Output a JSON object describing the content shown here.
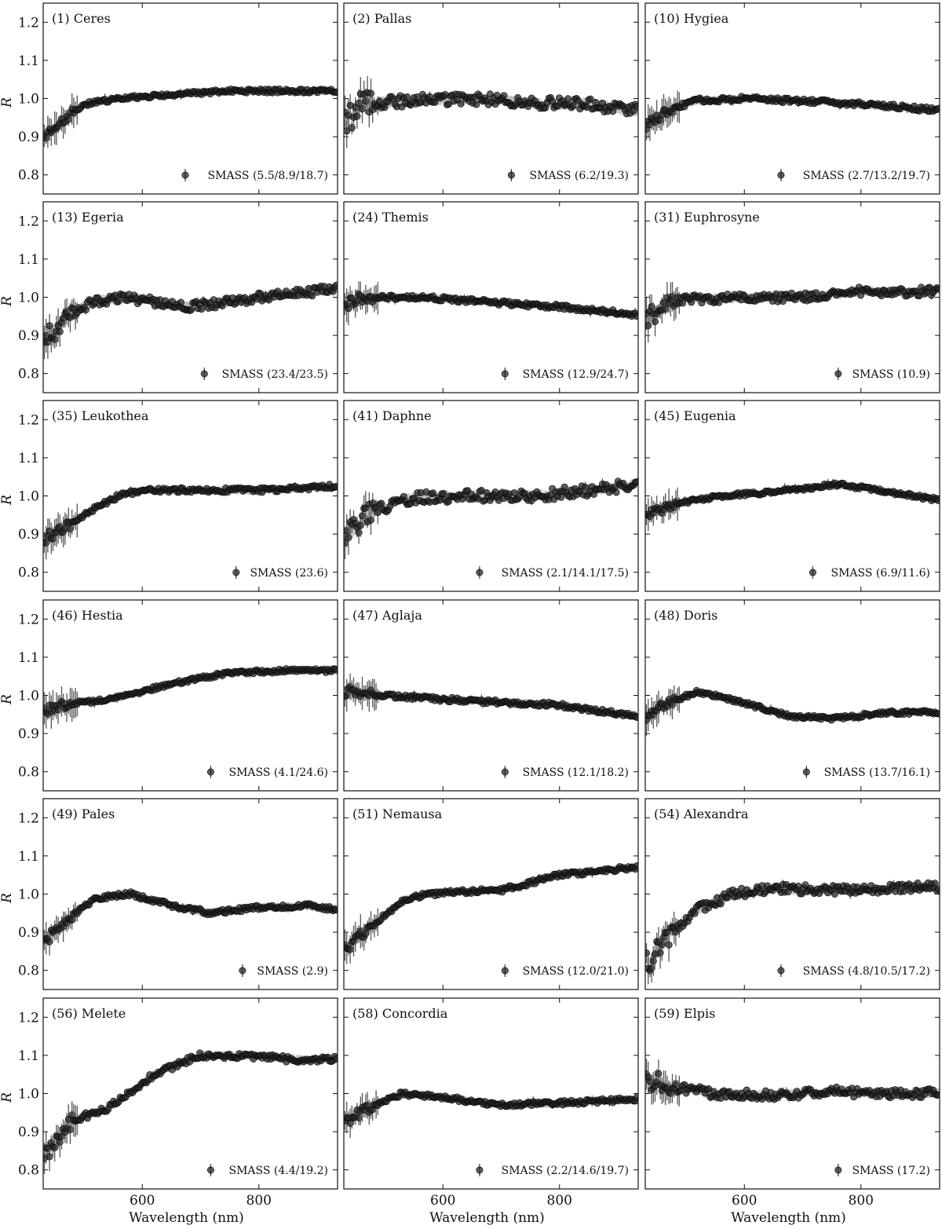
{
  "figure": {
    "xlabel": "Wavelength (nm)",
    "ylabel": "R"
  },
  "chart_data": {
    "type": "scatter",
    "xlim": [
      430,
      935
    ],
    "ylim": [
      0.75,
      1.25
    ],
    "xticks": [
      600,
      800
    ],
    "xtick_labels": [
      "600",
      "800"
    ],
    "yticks": [
      0.8,
      0.9,
      1.0,
      1.1,
      1.2
    ],
    "ytick_labels": [
      "0.8",
      "0.9",
      "1.0",
      "1.1",
      "1.2"
    ],
    "colors": {
      "point": "#222222",
      "band": "#b8b8b8",
      "axis": "#111111"
    },
    "panels": [
      {
        "title": "(1) Ceres",
        "legend": "SMASS (5.5/8.9/18.7)",
        "profile": [
          [
            435,
            0.9
          ],
          [
            460,
            0.94
          ],
          [
            500,
            0.985
          ],
          [
            560,
            1.0
          ],
          [
            650,
            1.01
          ],
          [
            750,
            1.02
          ],
          [
            850,
            1.02
          ],
          [
            930,
            1.02
          ]
        ],
        "noise": 0.005
      },
      {
        "title": "(2) Pallas",
        "legend": "SMASS (6.2/19.3)",
        "profile": [
          [
            435,
            0.94
          ],
          [
            460,
            0.985
          ],
          [
            550,
            0.995
          ],
          [
            650,
            1.0
          ],
          [
            750,
            0.99
          ],
          [
            850,
            0.985
          ],
          [
            930,
            0.97
          ]
        ],
        "noise": 0.015
      },
      {
        "title": "(10) Hygiea",
        "legend": "SMASS (2.7/13.2/19.7)",
        "profile": [
          [
            435,
            0.93
          ],
          [
            470,
            0.97
          ],
          [
            520,
            0.995
          ],
          [
            600,
            1.0
          ],
          [
            750,
            0.99
          ],
          [
            850,
            0.98
          ],
          [
            930,
            0.97
          ]
        ],
        "noise": 0.006
      },
      {
        "title": "(13) Egeria",
        "legend": "SMASS (23.4/23.5)",
        "profile": [
          [
            435,
            0.89
          ],
          [
            470,
            0.95
          ],
          [
            520,
            0.99
          ],
          [
            570,
            1.0
          ],
          [
            680,
            0.975
          ],
          [
            760,
            0.99
          ],
          [
            850,
            1.01
          ],
          [
            930,
            1.02
          ]
        ],
        "noise": 0.012
      },
      {
        "title": "(24) Themis",
        "legend": "SMASS (12.9/24.7)",
        "profile": [
          [
            435,
            0.98
          ],
          [
            460,
            1.0
          ],
          [
            560,
            1.0
          ],
          [
            700,
            0.985
          ],
          [
            800,
            0.975
          ],
          [
            930,
            0.955
          ]
        ],
        "noise": 0.006
      },
      {
        "title": "(31) Euphrosyne",
        "legend": "SMASS (10.9)",
        "profile": [
          [
            435,
            0.94
          ],
          [
            460,
            0.98
          ],
          [
            500,
            0.995
          ],
          [
            600,
            1.0
          ],
          [
            700,
            1.0
          ],
          [
            800,
            1.015
          ],
          [
            930,
            1.015
          ]
        ],
        "noise": 0.012
      },
      {
        "title": "(35) Leukothea",
        "legend": "SMASS (23.6)",
        "profile": [
          [
            435,
            0.89
          ],
          [
            470,
            0.92
          ],
          [
            520,
            0.97
          ],
          [
            560,
            1.0
          ],
          [
            600,
            1.015
          ],
          [
            700,
            1.015
          ],
          [
            800,
            1.015
          ],
          [
            930,
            1.025
          ]
        ],
        "noise": 0.006
      },
      {
        "title": "(41) Daphne",
        "legend": "SMASS (2.1/14.1/17.5)",
        "profile": [
          [
            435,
            0.89
          ],
          [
            480,
            0.96
          ],
          [
            550,
            0.995
          ],
          [
            650,
            1.0
          ],
          [
            750,
            1.0
          ],
          [
            850,
            1.015
          ],
          [
            930,
            1.03
          ]
        ],
        "noise": 0.015
      },
      {
        "title": "(45) Eugenia",
        "legend": "SMASS (6.9/11.6)",
        "profile": [
          [
            435,
            0.95
          ],
          [
            480,
            0.98
          ],
          [
            560,
            1.0
          ],
          [
            650,
            1.01
          ],
          [
            760,
            1.03
          ],
          [
            850,
            1.01
          ],
          [
            930,
            0.99
          ]
        ],
        "noise": 0.005
      },
      {
        "title": "(46) Hestia",
        "legend": "SMASS (4.1/24.6)",
        "profile": [
          [
            435,
            0.96
          ],
          [
            460,
            0.975
          ],
          [
            550,
            0.99
          ],
          [
            650,
            1.03
          ],
          [
            750,
            1.06
          ],
          [
            850,
            1.065
          ],
          [
            930,
            1.065
          ]
        ],
        "noise": 0.005
      },
      {
        "title": "(47) Aglaja",
        "legend": "SMASS (12.1/18.2)",
        "profile": [
          [
            435,
            1.01
          ],
          [
            500,
            1.0
          ],
          [
            650,
            0.985
          ],
          [
            800,
            0.975
          ],
          [
            930,
            0.945
          ]
        ],
        "noise": 0.006
      },
      {
        "title": "(48) Doris",
        "legend": "SMASS (13.7/16.1)",
        "profile": [
          [
            435,
            0.94
          ],
          [
            460,
            0.975
          ],
          [
            520,
            1.01
          ],
          [
            600,
            0.98
          ],
          [
            680,
            0.945
          ],
          [
            750,
            0.94
          ],
          [
            850,
            0.955
          ],
          [
            930,
            0.955
          ]
        ],
        "noise": 0.005
      },
      {
        "title": "(49) Pales",
        "legend": "SMASS (2.9)",
        "profile": [
          [
            435,
            0.88
          ],
          [
            470,
            0.93
          ],
          [
            520,
            0.99
          ],
          [
            580,
            1.0
          ],
          [
            650,
            0.97
          ],
          [
            720,
            0.95
          ],
          [
            800,
            0.965
          ],
          [
            880,
            0.97
          ],
          [
            930,
            0.96
          ]
        ],
        "noise": 0.006
      },
      {
        "title": "(51) Nemausa",
        "legend": "SMASS (12.0/21.0)",
        "profile": [
          [
            435,
            0.86
          ],
          [
            480,
            0.92
          ],
          [
            540,
            0.99
          ],
          [
            600,
            1.005
          ],
          [
            700,
            1.01
          ],
          [
            800,
            1.05
          ],
          [
            930,
            1.07
          ]
        ],
        "noise": 0.006
      },
      {
        "title": "(54) Alexandra",
        "legend": "SMASS (4.8/10.5/17.2)",
        "profile": [
          [
            435,
            0.82
          ],
          [
            470,
            0.89
          ],
          [
            520,
            0.96
          ],
          [
            580,
            1.0
          ],
          [
            650,
            1.015
          ],
          [
            750,
            1.01
          ],
          [
            850,
            1.015
          ],
          [
            930,
            1.02
          ]
        ],
        "noise": 0.012
      },
      {
        "title": "(56) Melete",
        "legend": "SMASS (4.4/19.2)",
        "profile": [
          [
            435,
            0.84
          ],
          [
            480,
            0.93
          ],
          [
            540,
            0.96
          ],
          [
            620,
            1.05
          ],
          [
            700,
            1.1
          ],
          [
            780,
            1.1
          ],
          [
            850,
            1.09
          ],
          [
            930,
            1.09
          ]
        ],
        "noise": 0.008
      },
      {
        "title": "(58) Concordia",
        "legend": "SMASS (2.2/14.6/19.7)",
        "profile": [
          [
            435,
            0.93
          ],
          [
            470,
            0.96
          ],
          [
            530,
            1.0
          ],
          [
            600,
            0.99
          ],
          [
            700,
            0.97
          ],
          [
            800,
            0.975
          ],
          [
            930,
            0.985
          ]
        ],
        "noise": 0.006
      },
      {
        "title": "(59) Elpis",
        "legend": "SMASS (17.2)",
        "profile": [
          [
            435,
            1.04
          ],
          [
            460,
            1.02
          ],
          [
            550,
            1.0
          ],
          [
            650,
            0.995
          ],
          [
            750,
            1.005
          ],
          [
            850,
            1.0
          ],
          [
            930,
            1.0
          ]
        ],
        "noise": 0.012
      }
    ]
  }
}
